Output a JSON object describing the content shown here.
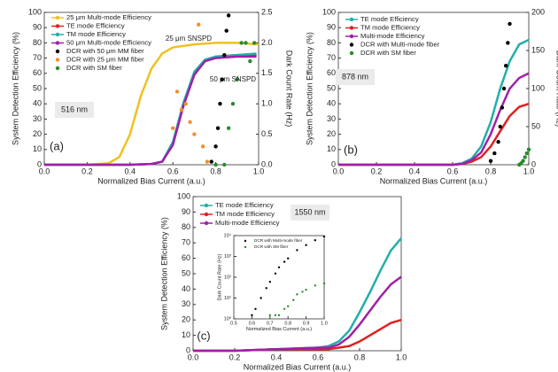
{
  "chart_data": [
    {
      "type": "line",
      "xlabel": "Normalized Bias Current (a.u.)",
      "ylabel": "System Detection Efficiency (%)",
      "y2label": "Dark Count Rate (Hz)",
      "xlim": [
        0,
        1
      ],
      "xticks": [
        {
          "value": 0,
          "label": "0.0"
        },
        {
          "value": 0.2,
          "label": "0.2"
        },
        {
          "value": 0.4,
          "label": "0.4"
        },
        {
          "value": 0.6,
          "label": "0.6"
        },
        {
          "value": 0.8,
          "label": "0.8"
        },
        {
          "value": 1,
          "label": "1.0"
        }
      ],
      "ylim": [
        0,
        100
      ],
      "yticks": [
        0,
        10,
        20,
        30,
        40,
        50,
        60,
        70,
        80,
        90,
        100
      ],
      "y2lim": [
        0,
        2.5
      ],
      "y2ticks": [
        {
          "value": 0,
          "label": "0.0"
        },
        {
          "value": 0.5,
          "label": "0.5"
        },
        {
          "value": 1,
          "label": "1.0"
        },
        {
          "value": 1.5,
          "label": "1.5"
        },
        {
          "value": 2,
          "label": "2.0"
        },
        {
          "value": 2.5,
          "label": "2.5"
        }
      ],
      "annotations": [
        "25 μm SNSPD",
        "50 μm SNSPD",
        "516 nm",
        "(a)"
      ],
      "series": [
        {
          "name": "25 μm Multi-mode Efficiency",
          "color": "#f0c020",
          "style": "line",
          "x": [
            0,
            0.1,
            0.2,
            0.3,
            0.35,
            0.4,
            0.45,
            0.5,
            0.55,
            0.6,
            0.7,
            0.8,
            0.9,
            1.0
          ],
          "values": [
            0,
            0,
            0,
            1,
            5,
            20,
            45,
            63,
            73,
            77,
            79,
            80,
            80,
            79
          ]
        },
        {
          "name": "TE mode Efficiency",
          "color": "#e02020",
          "style": "line",
          "x": [
            0,
            0.2,
            0.4,
            0.5,
            0.55,
            0.6,
            0.65,
            0.7,
            0.75,
            0.8,
            0.9,
            0.99
          ],
          "values": [
            0,
            0,
            0,
            0.5,
            2,
            14,
            40,
            60,
            68,
            71,
            72,
            72
          ]
        },
        {
          "name": "TM mode Efficiency",
          "color": "#20b0a8",
          "style": "line",
          "x": [
            0,
            0.2,
            0.4,
            0.5,
            0.55,
            0.6,
            0.65,
            0.7,
            0.75,
            0.8,
            0.9,
            0.99
          ],
          "values": [
            0,
            0,
            0,
            0.5,
            2,
            15,
            41,
            61,
            69,
            71,
            72,
            73
          ]
        },
        {
          "name": "50 μm Multi-mode Efficiency",
          "color": "#a020a8",
          "style": "line",
          "x": [
            0,
            0.2,
            0.4,
            0.5,
            0.55,
            0.6,
            0.65,
            0.7,
            0.75,
            0.8,
            0.9,
            0.99
          ],
          "values": [
            0,
            0,
            0,
            0.5,
            2,
            13,
            39,
            59,
            68,
            70,
            71,
            71
          ]
        },
        {
          "name": "DCR with 50 μm MM fiber",
          "color": "#000000",
          "style": "scatter",
          "axis": "y2",
          "x": [
            0.78,
            0.8,
            0.81,
            0.82,
            0.83,
            0.84,
            0.85,
            0.86
          ],
          "values": [
            0.05,
            0.3,
            0.6,
            1.0,
            1.4,
            1.8,
            2.2,
            2.45
          ]
        },
        {
          "name": "DCR with 25 μm MM fiber",
          "color": "#f09030",
          "style": "scatter",
          "axis": "y2",
          "x": [
            0.6,
            0.62,
            0.64,
            0.66,
            0.68,
            0.7,
            0.72,
            0.74,
            0.76
          ],
          "values": [
            0.6,
            1.2,
            0.9,
            1.0,
            0.7,
            0.5,
            2.3,
            0.3,
            0.05
          ]
        },
        {
          "name": "DCR with SM fiber",
          "color": "#2a8a2a",
          "style": "scatter",
          "axis": "y2",
          "x": [
            0.8,
            0.84,
            0.86,
            0.88,
            0.9,
            0.92,
            0.94,
            0.96,
            0.98
          ],
          "values": [
            0,
            0,
            0.6,
            1.0,
            1.4,
            2.0,
            2.0,
            1.7,
            2.0
          ]
        }
      ]
    },
    {
      "type": "line",
      "xlabel": "Normalized Bias Current (a.u.)",
      "ylabel": "System Detection Efficiency (%)",
      "y2label": "Dark Count Rate (Hz)",
      "xlim": [
        0,
        1
      ],
      "xticks": [
        {
          "value": 0,
          "label": "0.0"
        },
        {
          "value": 0.2,
          "label": "0.2"
        },
        {
          "value": 0.4,
          "label": "0.4"
        },
        {
          "value": 0.6,
          "label": "0.6"
        },
        {
          "value": 0.8,
          "label": "0.8"
        },
        {
          "value": 1,
          "label": "1.0"
        }
      ],
      "ylim": [
        0,
        100
      ],
      "yticks": [
        0,
        10,
        20,
        30,
        40,
        50,
        60,
        70,
        80,
        90,
        100
      ],
      "y2lim": [
        0,
        200
      ],
      "y2ticks": [
        0,
        50,
        100,
        150,
        200
      ],
      "annotations": [
        "878 nm",
        "(b)"
      ],
      "series": [
        {
          "name": "TE mode Efficiency",
          "color": "#20b0a8",
          "style": "line",
          "x": [
            0,
            0.2,
            0.4,
            0.6,
            0.65,
            0.7,
            0.75,
            0.8,
            0.85,
            0.9,
            0.95,
            1.0
          ],
          "values": [
            0,
            0,
            0,
            0,
            1,
            4,
            12,
            28,
            50,
            68,
            79,
            82
          ]
        },
        {
          "name": "TM mode Efficiency",
          "color": "#e02020",
          "style": "line",
          "x": [
            0,
            0.2,
            0.4,
            0.6,
            0.65,
            0.7,
            0.75,
            0.8,
            0.85,
            0.9,
            0.95,
            1.0
          ],
          "values": [
            0,
            0,
            0,
            0,
            0.5,
            2,
            5,
            12,
            22,
            32,
            38,
            40
          ]
        },
        {
          "name": "Multi-mode Efficiency",
          "color": "#a020a8",
          "style": "line",
          "x": [
            0,
            0.2,
            0.4,
            0.6,
            0.65,
            0.7,
            0.75,
            0.8,
            0.85,
            0.9,
            0.95,
            1.0
          ],
          "values": [
            0,
            0,
            0,
            0,
            0.5,
            3,
            8,
            20,
            36,
            50,
            57,
            60
          ]
        },
        {
          "name": "DCR with Multi-mode fiber",
          "color": "#000000",
          "style": "scatter",
          "axis": "y2",
          "x": [
            0.8,
            0.82,
            0.84,
            0.85,
            0.86,
            0.87,
            0.88,
            0.89,
            0.9
          ],
          "values": [
            5,
            15,
            30,
            50,
            75,
            100,
            130,
            160,
            185
          ]
        },
        {
          "name": "DCR with SM fiber",
          "color": "#2a8a2a",
          "style": "scatter",
          "axis": "y2",
          "x": [
            0.95,
            0.96,
            0.97,
            0.98,
            0.99,
            1.0
          ],
          "values": [
            0,
            2,
            5,
            10,
            15,
            20
          ]
        }
      ]
    },
    {
      "type": "line",
      "xlabel": "Normalized Bias Current (a.u.)",
      "ylabel": "System Detection Efficiency (%)",
      "xlim": [
        0,
        1
      ],
      "xticks": [
        {
          "value": 0,
          "label": "0.0"
        },
        {
          "value": 0.2,
          "label": "0.2"
        },
        {
          "value": 0.4,
          "label": "0.4"
        },
        {
          "value": 0.6,
          "label": "0.6"
        },
        {
          "value": 0.8,
          "label": "0.8"
        },
        {
          "value": 1,
          "label": "1.0"
        }
      ],
      "ylim": [
        0,
        100
      ],
      "yticks": [
        0,
        10,
        20,
        30,
        40,
        50,
        60,
        70,
        80,
        90,
        100
      ],
      "annotations": [
        "1550 nm",
        "(c)"
      ],
      "series": [
        {
          "name": "TE mode Efficiency",
          "color": "#20b0a8",
          "style": "line",
          "x": [
            0,
            0.2,
            0.4,
            0.6,
            0.65,
            0.7,
            0.75,
            0.8,
            0.85,
            0.9,
            0.95,
            1.0
          ],
          "values": [
            0,
            0,
            1,
            2,
            3,
            6,
            13,
            25,
            38,
            52,
            65,
            73
          ]
        },
        {
          "name": "TM mode Efficiency",
          "color": "#e02020",
          "style": "line",
          "x": [
            0,
            0.2,
            0.4,
            0.6,
            0.65,
            0.7,
            0.75,
            0.8,
            0.85,
            0.9,
            0.95,
            1.0
          ],
          "values": [
            0,
            0,
            1,
            1,
            1,
            2,
            3,
            6,
            10,
            14,
            18,
            20
          ]
        },
        {
          "name": "Multi-mode Efficiency",
          "color": "#a020a8",
          "style": "line",
          "x": [
            0,
            0.2,
            0.4,
            0.6,
            0.65,
            0.7,
            0.75,
            0.8,
            0.85,
            0.9,
            0.95,
            1.0
          ],
          "values": [
            0,
            0,
            1,
            2,
            2,
            4,
            9,
            17,
            26,
            35,
            43,
            48
          ]
        }
      ]
    },
    {
      "type": "line",
      "xlabel": "Normalized Bias Current (a.u.)",
      "ylabel": "Dark Count Rate (Hz)",
      "log_y": true,
      "xlim": [
        0.5,
        1
      ],
      "xticks": [
        {
          "value": 0.5,
          "label": "0.5"
        },
        {
          "value": 0.6,
          "label": "0.6"
        },
        {
          "value": 0.7,
          "label": "0.7"
        },
        {
          "value": 0.8,
          "label": "0.8"
        },
        {
          "value": 0.9,
          "label": "0.9"
        },
        {
          "value": 1,
          "label": "1.0"
        }
      ],
      "ylim": [
        1,
        10000
      ],
      "yticks": [
        {
          "value": 1,
          "label": "10⁰"
        },
        {
          "value": 10,
          "label": "10¹"
        },
        {
          "value": 100,
          "label": "10²"
        },
        {
          "value": 1000,
          "label": "10³"
        },
        {
          "value": 10000,
          "label": "10⁴"
        }
      ],
      "series": [
        {
          "name": "DCR with Multi-mode fiber",
          "color": "#000000",
          "style": "scatter",
          "x": [
            0.6,
            0.62,
            0.65,
            0.68,
            0.7,
            0.73,
            0.75,
            0.78,
            0.8,
            0.85,
            0.9,
            0.95,
            1.0
          ],
          "values": [
            1.5,
            3,
            10,
            30,
            60,
            150,
            300,
            550,
            800,
            2000,
            3500,
            6000,
            9000
          ]
        },
        {
          "name": "DCR with SM fiber",
          "color": "#2a8a2a",
          "style": "scatter",
          "x": [
            0.7,
            0.73,
            0.75,
            0.78,
            0.8,
            0.83,
            0.85,
            0.88,
            0.9,
            0.95,
            1.0
          ],
          "values": [
            1.5,
            1.5,
            1.5,
            3,
            4,
            8,
            15,
            20,
            25,
            40,
            50
          ]
        }
      ]
    }
  ]
}
